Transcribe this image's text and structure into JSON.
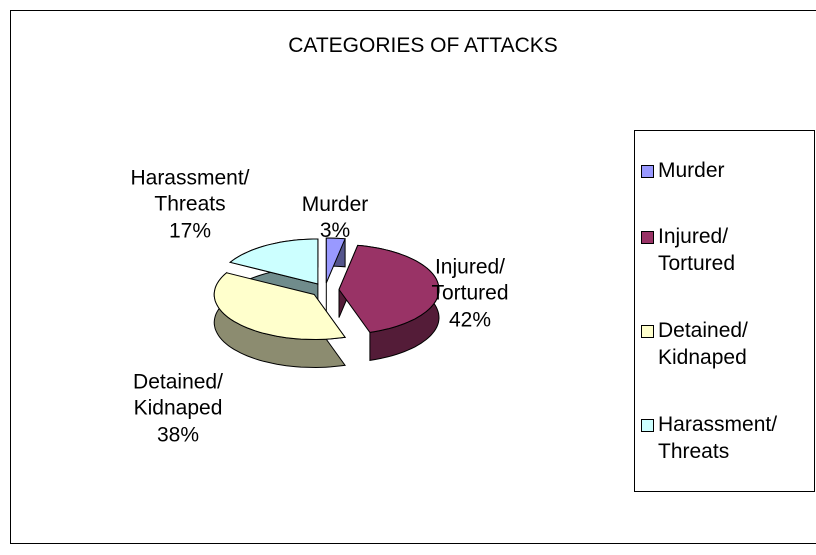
{
  "chart_data": {
    "type": "pie",
    "title": "CATEGORIES OF ATTACKS",
    "categories": [
      "Murder",
      "Injured/ Tortured",
      "Detained/ Kidnaped",
      "Harassment/ Threats"
    ],
    "values": [
      3,
      42,
      38,
      17
    ],
    "value_labels": [
      "3%",
      "42%",
      "38%",
      "17%"
    ],
    "colors": [
      "#9999ff",
      "#993366",
      "#ffffcc",
      "#ccffff"
    ],
    "legend": "right"
  }
}
